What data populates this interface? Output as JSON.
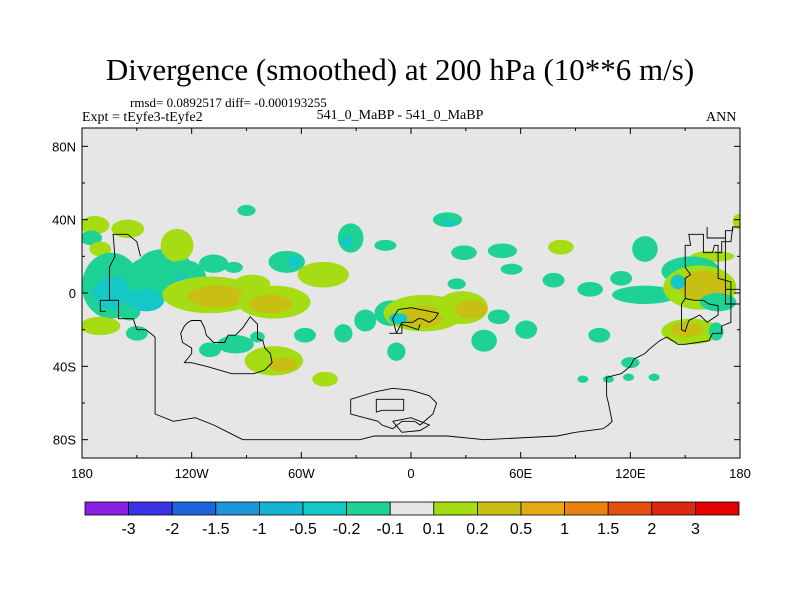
{
  "chart_data": {
    "type": "heatmap",
    "title": "Divergence (smoothed) at 200 hPa (10**6 m/s)",
    "stats": "rmsd= 0.0892517  diff= -0.000193255",
    "subtitle": "541_0_MaBP - 541_0_MaBP",
    "experiment": "Expt = tEyfe3-tEyfe2",
    "season": "ANN",
    "x_range": [
      -180,
      180
    ],
    "y_range": [
      -90,
      90
    ],
    "x_ticks": [
      {
        "value": -180,
        "label": "180"
      },
      {
        "value": -120,
        "label": "120W"
      },
      {
        "value": -60,
        "label": "60W"
      },
      {
        "value": 0,
        "label": "0"
      },
      {
        "value": 60,
        "label": "60E"
      },
      {
        "value": 120,
        "label": "120E"
      },
      {
        "value": 180,
        "label": "180"
      }
    ],
    "y_ticks": [
      {
        "value": 80,
        "label": "80N"
      },
      {
        "value": 40,
        "label": "40N"
      },
      {
        "value": 0,
        "label": "0"
      },
      {
        "value": -40,
        "label": "40S"
      },
      {
        "value": -80,
        "label": "80S"
      }
    ],
    "contour_levels": [
      "-3",
      "-2",
      "-1.5",
      "-1",
      "-0.5",
      "-0.2",
      "-0.1",
      "0.1",
      "0.2",
      "0.5",
      "1",
      "1.5",
      "2",
      "3"
    ],
    "colorbar_colors": [
      "#8c1ee6",
      "#3c32e6",
      "#1e64dc",
      "#1e96dc",
      "#14b4d2",
      "#14c8c8",
      "#1ed296",
      "#e6e6e6",
      "#a5dc14",
      "#c8be14",
      "#e6aa14",
      "#eb820f",
      "#e6500f",
      "#dc280f",
      "#e60000"
    ],
    "regions": [
      {
        "lon": -173,
        "lat": 37,
        "rx": 8,
        "ry": 5,
        "color": "#a5dc14"
      },
      {
        "lon": -155,
        "lat": 35,
        "rx": 9,
        "ry": 5,
        "color": "#a5dc14"
      },
      {
        "lon": -90,
        "lat": 45,
        "rx": 5,
        "ry": 3,
        "color": "#1ed296"
      },
      {
        "lon": -175,
        "lat": 30,
        "rx": 6,
        "ry": 4,
        "color": "#1ed296"
      },
      {
        "lon": -170,
        "lat": 24,
        "rx": 6,
        "ry": 4,
        "color": "#a5dc14"
      },
      {
        "lon": -164,
        "lat": 4,
        "rx": 16,
        "ry": 18,
        "color": "#1ed296"
      },
      {
        "lon": -162,
        "lat": 0,
        "rx": 12,
        "ry": 9,
        "color": "#14c8c8"
      },
      {
        "lon": -154,
        "lat": -10,
        "rx": 6,
        "ry": 5,
        "color": "#1ed296"
      },
      {
        "lon": -142,
        "lat": 8,
        "rx": 14,
        "ry": 12,
        "color": "#1ed296"
      },
      {
        "lon": -135,
        "lat": 16,
        "rx": 14,
        "ry": 8,
        "color": "#1ed296"
      },
      {
        "lon": -145,
        "lat": -4,
        "rx": 10,
        "ry": 6,
        "color": "#14c8c8"
      },
      {
        "lon": -128,
        "lat": 26,
        "rx": 9,
        "ry": 9,
        "color": "#a5dc14"
      },
      {
        "lon": -124,
        "lat": 8,
        "rx": 12,
        "ry": 10,
        "color": "#1ed296"
      },
      {
        "lon": -125,
        "lat": 7,
        "rx": 4,
        "ry": 3,
        "color": "#14c8c8"
      },
      {
        "lon": -110,
        "lat": -1,
        "rx": 26,
        "ry": 10,
        "color": "#a5dc14"
      },
      {
        "lon": -106,
        "lat": -2,
        "rx": 16,
        "ry": 6,
        "color": "#c8be14"
      },
      {
        "lon": -87,
        "lat": 5,
        "rx": 10,
        "ry": 5,
        "color": "#a5dc14"
      },
      {
        "lon": -75,
        "lat": -5,
        "rx": 20,
        "ry": 9,
        "color": "#a5dc14"
      },
      {
        "lon": -77,
        "lat": -6,
        "rx": 12,
        "ry": 5,
        "color": "#c8be14"
      },
      {
        "lon": -108,
        "lat": 16,
        "rx": 8,
        "ry": 5,
        "color": "#1ed296"
      },
      {
        "lon": -97,
        "lat": 14,
        "rx": 5,
        "ry": 3,
        "color": "#1ed296"
      },
      {
        "lon": -68,
        "lat": 17,
        "rx": 10,
        "ry": 6,
        "color": "#1ed296"
      },
      {
        "lon": -64,
        "lat": 17,
        "rx": 4,
        "ry": 3,
        "color": "#14c8c8"
      },
      {
        "lon": -48,
        "lat": 10,
        "rx": 14,
        "ry": 7,
        "color": "#a5dc14"
      },
      {
        "lon": -170,
        "lat": -18,
        "rx": 11,
        "ry": 5,
        "color": "#a5dc14"
      },
      {
        "lon": -150,
        "lat": -22,
        "rx": 6,
        "ry": 4,
        "color": "#1ed296"
      },
      {
        "lon": -110,
        "lat": -31,
        "rx": 6,
        "ry": 4,
        "color": "#1ed296"
      },
      {
        "lon": -96,
        "lat": -28,
        "rx": 10,
        "ry": 5,
        "color": "#1ed296"
      },
      {
        "lon": -84,
        "lat": -24,
        "rx": 4,
        "ry": 3,
        "color": "#1ed296"
      },
      {
        "lon": -75,
        "lat": -37,
        "rx": 16,
        "ry": 8,
        "color": "#a5dc14"
      },
      {
        "lon": -70,
        "lat": -39,
        "rx": 8,
        "ry": 4,
        "color": "#c8be14"
      },
      {
        "lon": -47,
        "lat": -47,
        "rx": 7,
        "ry": 4,
        "color": "#a5dc14"
      },
      {
        "lon": -58,
        "lat": -23,
        "rx": 6,
        "ry": 4,
        "color": "#1ed296"
      },
      {
        "lon": -37,
        "lat": -22,
        "rx": 5,
        "ry": 5,
        "color": "#1ed296"
      },
      {
        "lon": -33,
        "lat": 30,
        "rx": 7,
        "ry": 8,
        "color": "#1ed296"
      },
      {
        "lon": -35,
        "lat": 28,
        "rx": 3,
        "ry": 3,
        "color": "#14c8c8"
      },
      {
        "lon": -14,
        "lat": 26,
        "rx": 6,
        "ry": 3,
        "color": "#1ed296"
      },
      {
        "lon": -25,
        "lat": -15,
        "rx": 6,
        "ry": 6,
        "color": "#1ed296"
      },
      {
        "lon": -8,
        "lat": -32,
        "rx": 5,
        "ry": 5,
        "color": "#1ed296"
      },
      {
        "lon": -11,
        "lat": -11,
        "rx": 9,
        "ry": 7,
        "color": "#1ed296"
      },
      {
        "lon": 7,
        "lat": -11,
        "rx": 22,
        "ry": 10,
        "color": "#a5dc14"
      },
      {
        "lon": 6,
        "lat": -13,
        "rx": 12,
        "ry": 6,
        "color": "#c8be14"
      },
      {
        "lon": -7,
        "lat": -14,
        "rx": 5,
        "ry": 3,
        "color": "#14c8c8"
      },
      {
        "lon": 25,
        "lat": 5,
        "rx": 5,
        "ry": 3,
        "color": "#1ed296"
      },
      {
        "lon": 28,
        "lat": -8,
        "rx": 14,
        "ry": 9,
        "color": "#a5dc14"
      },
      {
        "lon": 33,
        "lat": -9,
        "rx": 9,
        "ry": 5,
        "color": "#c8be14"
      },
      {
        "lon": 48,
        "lat": -13,
        "rx": 6,
        "ry": 4,
        "color": "#1ed296"
      },
      {
        "lon": 40,
        "lat": -26,
        "rx": 7,
        "ry": 6,
        "color": "#1ed296"
      },
      {
        "lon": 63,
        "lat": -20,
        "rx": 6,
        "ry": 5,
        "color": "#1ed296"
      },
      {
        "lon": 20,
        "lat": 40,
        "rx": 8,
        "ry": 4,
        "color": "#1ed296"
      },
      {
        "lon": 21,
        "lat": 38,
        "rx": 3,
        "ry": 2,
        "color": "#14c8c8"
      },
      {
        "lon": 29,
        "lat": 22,
        "rx": 7,
        "ry": 4,
        "color": "#1ed296"
      },
      {
        "lon": 50,
        "lat": 23,
        "rx": 8,
        "ry": 4,
        "color": "#1ed296"
      },
      {
        "lon": 55,
        "lat": 13,
        "rx": 6,
        "ry": 3,
        "color": "#1ed296"
      },
      {
        "lon": 82,
        "lat": 25,
        "rx": 7,
        "ry": 4,
        "color": "#a5dc14"
      },
      {
        "lon": 78,
        "lat": 7,
        "rx": 6,
        "ry": 4,
        "color": "#1ed296"
      },
      {
        "lon": 98,
        "lat": 2,
        "rx": 7,
        "ry": 4,
        "color": "#1ed296"
      },
      {
        "lon": 115,
        "lat": 8,
        "rx": 6,
        "ry": 4,
        "color": "#1ed296"
      },
      {
        "lon": 128,
        "lat": -1,
        "rx": 18,
        "ry": 5,
        "color": "#1ed296"
      },
      {
        "lon": 128,
        "lat": 24,
        "rx": 7,
        "ry": 7,
        "color": "#1ed296"
      },
      {
        "lon": 165,
        "lat": 20,
        "rx": 12,
        "ry": 3,
        "color": "#a5dc14"
      },
      {
        "lon": 153,
        "lat": 12,
        "rx": 16,
        "ry": 8,
        "color": "#1ed296"
      },
      {
        "lon": 158,
        "lat": 3,
        "rx": 20,
        "ry": 12,
        "color": "#a5dc14"
      },
      {
        "lon": 160,
        "lat": 4,
        "rx": 14,
        "ry": 8,
        "color": "#c8be14"
      },
      {
        "lon": 146,
        "lat": 6,
        "rx": 4,
        "ry": 4,
        "color": "#14c8c8"
      },
      {
        "lon": 168,
        "lat": -5,
        "rx": 10,
        "ry": 5,
        "color": "#1ed296"
      },
      {
        "lon": 179,
        "lat": 39,
        "rx": 3,
        "ry": 4,
        "color": "#a5dc14"
      },
      {
        "lon": 153,
        "lat": -21,
        "rx": 16,
        "ry": 7,
        "color": "#a5dc14"
      },
      {
        "lon": 151,
        "lat": -20,
        "rx": 9,
        "ry": 4,
        "color": "#c8be14"
      },
      {
        "lon": 167,
        "lat": -21,
        "rx": 4,
        "ry": 5,
        "color": "#1ed296"
      },
      {
        "lon": 120,
        "lat": -38,
        "rx": 5,
        "ry": 3,
        "color": "#1ed296"
      },
      {
        "lon": 133,
        "lat": -46,
        "rx": 3,
        "ry": 2,
        "color": "#1ed296"
      },
      {
        "lon": 94,
        "lat": -47,
        "rx": 3,
        "ry": 2,
        "color": "#1ed296"
      },
      {
        "lon": 108,
        "lat": -47,
        "rx": 3,
        "ry": 2,
        "color": "#1ed296"
      },
      {
        "lon": 119,
        "lat": -46,
        "rx": 3,
        "ry": 2,
        "color": "#1ed296"
      },
      {
        "lon": 103,
        "lat": -23,
        "rx": 6,
        "ry": 4,
        "color": "#1ed296"
      }
    ],
    "coastlines": [
      [
        [
          -164,
          -4
        ],
        [
          -165,
          -4
        ],
        [
          -165,
          4
        ],
        [
          -165,
          14
        ],
        [
          -162,
          20
        ],
        [
          -163,
          32
        ],
        [
          -155,
          32
        ],
        [
          -150,
          28
        ],
        [
          -148,
          20
        ]
      ],
      [
        [
          -164,
          -4
        ],
        [
          -170,
          -4
        ],
        [
          -170,
          -10
        ],
        [
          -167,
          -10
        ]
      ],
      [
        [
          -164,
          -4
        ],
        [
          -160,
          -4
        ],
        [
          -160,
          -14
        ],
        [
          -152,
          -14
        ],
        [
          -150,
          -20
        ],
        [
          -145,
          -20
        ],
        [
          -140,
          -24
        ]
      ],
      [
        [
          -122,
          -16
        ],
        [
          -120,
          -15
        ],
        [
          -115,
          -15
        ],
        [
          -113,
          -19
        ],
        [
          -112,
          -23
        ],
        [
          -108,
          -27
        ],
        [
          -102,
          -27
        ],
        [
          -100,
          -23
        ],
        [
          -96,
          -23
        ],
        [
          -92,
          -19
        ],
        [
          -88,
          -13
        ],
        [
          -84,
          -17
        ],
        [
          -84,
          -25
        ],
        [
          -81,
          -26
        ],
        [
          -80,
          -30
        ],
        [
          -77,
          -33
        ],
        [
          -76,
          -38
        ],
        [
          -80,
          -42
        ],
        [
          -86,
          -44
        ],
        [
          -98,
          -44
        ],
        [
          -112,
          -40
        ],
        [
          -120,
          -38
        ],
        [
          -124,
          -38
        ],
        [
          -120,
          -33
        ],
        [
          -120,
          -30
        ],
        [
          -125,
          -27
        ],
        [
          -126,
          -22
        ],
        [
          -124,
          -18
        ],
        [
          -122,
          -16
        ]
      ],
      [
        [
          -140,
          -24
        ],
        [
          -140,
          -66
        ],
        [
          -130,
          -70
        ],
        [
          -118,
          -68
        ],
        [
          -108,
          -72
        ],
        [
          -100,
          -76
        ],
        [
          -92,
          -80
        ],
        [
          -60,
          -80
        ],
        [
          -28,
          -80
        ],
        [
          -20,
          -78
        ],
        [
          20,
          -78
        ],
        [
          40,
          -80
        ],
        [
          80,
          -78
        ],
        [
          90,
          -76
        ],
        [
          105,
          -74
        ],
        [
          108,
          -72
        ],
        [
          110,
          -70
        ],
        [
          108,
          -60
        ],
        [
          107,
          -56
        ],
        [
          107,
          -46
        ],
        [
          115,
          -44
        ],
        [
          120,
          -40
        ],
        [
          122,
          -36
        ],
        [
          128,
          -33
        ],
        [
          130,
          -31
        ],
        [
          136,
          -26
        ],
        [
          140,
          -24
        ]
      ],
      [
        [
          -19,
          -65
        ],
        [
          -19,
          -58
        ],
        [
          -4,
          -58
        ],
        [
          -4,
          -64
        ],
        [
          -16,
          -64
        ],
        [
          -19,
          -65
        ]
      ],
      [
        [
          -10,
          -70
        ],
        [
          0,
          -68
        ],
        [
          10,
          -72
        ],
        [
          5,
          -75
        ],
        [
          -5,
          -76
        ],
        [
          -10,
          -70
        ]
      ],
      [
        [
          -33,
          -58
        ],
        [
          -33,
          -66
        ],
        [
          -18,
          -70
        ],
        [
          -16,
          -72
        ],
        [
          -10,
          -74
        ],
        [
          -5,
          -70
        ],
        [
          2,
          -70
        ],
        [
          5,
          -72
        ],
        [
          12,
          -66
        ],
        [
          14,
          -60
        ],
        [
          10,
          -56
        ],
        [
          0,
          -53
        ],
        [
          -10,
          -52
        ],
        [
          -20,
          -54
        ],
        [
          -33,
          -58
        ]
      ],
      [
        [
          -8,
          -22
        ],
        [
          -10,
          -14
        ],
        [
          -7,
          -9
        ],
        [
          0,
          -8
        ],
        [
          10,
          -10
        ],
        [
          15,
          -11
        ],
        [
          13,
          -14
        ],
        [
          10,
          -16
        ],
        [
          6,
          -14
        ],
        [
          4,
          -14
        ],
        [
          1,
          -16
        ],
        [
          -5,
          -16
        ],
        [
          -8,
          -22
        ]
      ],
      [
        [
          -12,
          -22
        ],
        [
          -5,
          -22
        ],
        [
          -5,
          -17
        ],
        [
          4,
          -20
        ],
        [
          5,
          -17
        ]
      ],
      [
        [
          150,
          -3
        ],
        [
          148,
          -6
        ],
        [
          148,
          -20
        ],
        [
          150,
          -21
        ],
        [
          152,
          -15
        ],
        [
          158,
          -12
        ],
        [
          162,
          -16
        ],
        [
          168,
          -12
        ],
        [
          168,
          -7
        ],
        [
          163,
          -6
        ],
        [
          160,
          -4
        ],
        [
          155,
          -4
        ],
        [
          150,
          -3
        ]
      ],
      [
        [
          150,
          -3
        ],
        [
          150,
          8
        ],
        [
          153,
          10
        ],
        [
          150,
          14
        ],
        [
          150,
          26
        ],
        [
          153,
          26
        ],
        [
          152,
          32
        ],
        [
          160,
          32
        ],
        [
          160,
          22
        ],
        [
          165,
          22
        ],
        [
          166,
          26
        ],
        [
          168,
          26
        ],
        [
          168,
          18
        ],
        [
          168,
          8
        ],
        [
          175,
          6
        ],
        [
          175,
          -16
        ],
        [
          170,
          -18
        ],
        [
          170,
          -22
        ],
        [
          165,
          -22
        ],
        [
          163,
          -26
        ],
        [
          150,
          -28
        ],
        [
          146,
          -28
        ],
        [
          140,
          -24
        ]
      ],
      [
        [
          162,
          36
        ],
        [
          162,
          30
        ],
        [
          172,
          30
        ],
        [
          172,
          34
        ],
        [
          176,
          34
        ],
        [
          176,
          36
        ],
        [
          180,
          36
        ]
      ],
      [
        [
          172,
          30
        ],
        [
          172,
          2
        ],
        [
          180,
          2
        ]
      ],
      [
        [
          172,
          2
        ],
        [
          172,
          -6
        ],
        [
          177,
          -6
        ],
        [
          180,
          -6
        ]
      ],
      [
        [
          176,
          36
        ],
        [
          175,
          28
        ],
        [
          170,
          28
        ],
        [
          170,
          22
        ],
        [
          166,
          22
        ]
      ]
    ],
    "colorbar_label_note": "14 boundary labels for 15 color bins"
  }
}
